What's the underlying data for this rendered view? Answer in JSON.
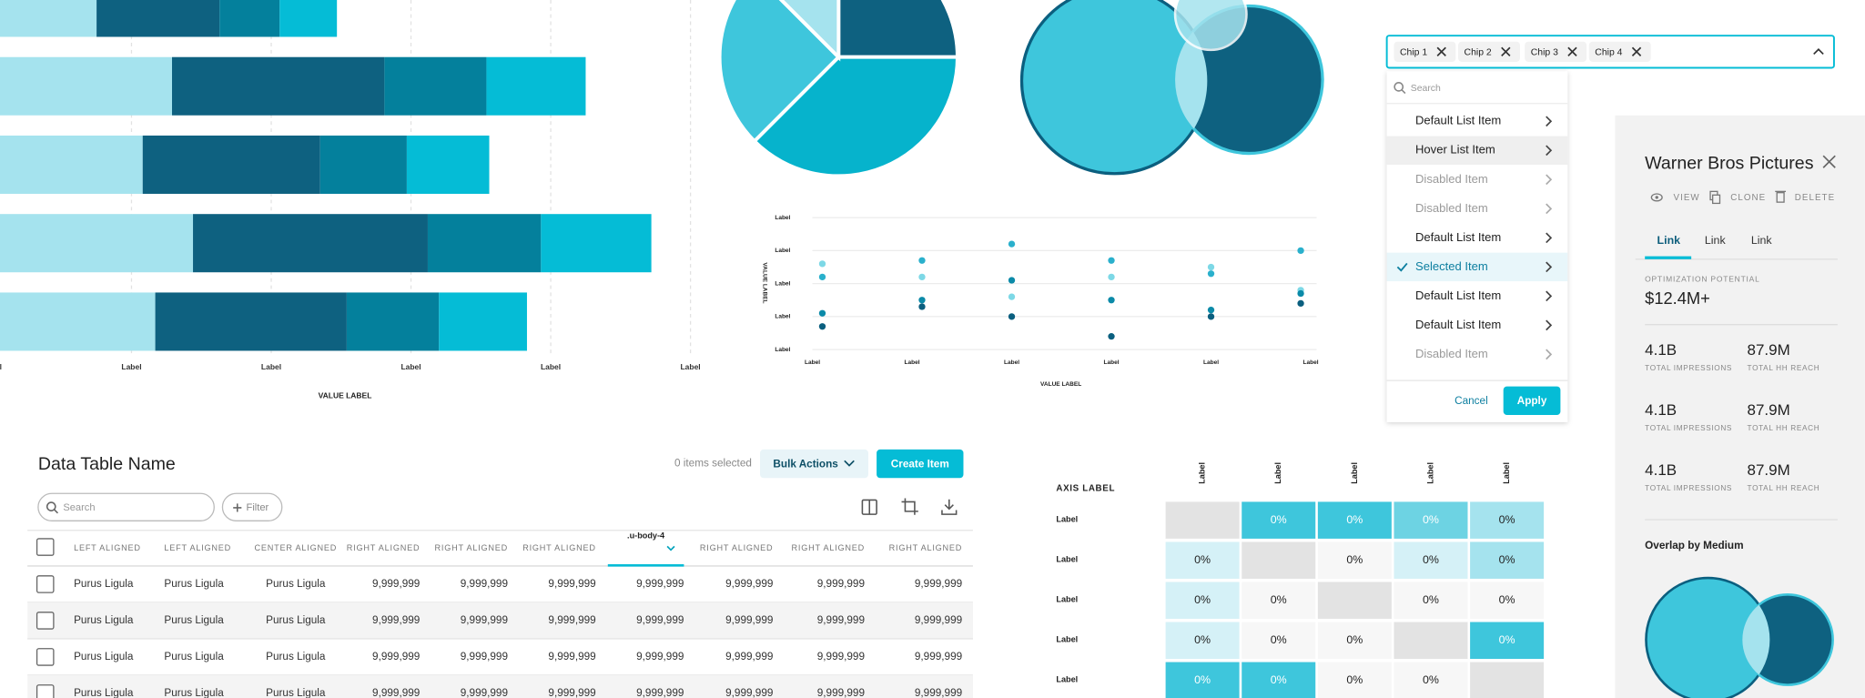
{
  "chart_data": [
    {
      "type": "bar",
      "orientation": "horizontal",
      "stacked": true,
      "x_label": "VALUE LABEL",
      "xlim": [
        0,
        5
      ],
      "xticks": [
        {
          "value": 0,
          "label": "Label"
        },
        {
          "value": 1,
          "label": "Label"
        },
        {
          "value": 2,
          "label": "Label"
        },
        {
          "value": 3,
          "label": "Label"
        },
        {
          "value": 4,
          "label": "Label"
        },
        {
          "value": 5,
          "label": "Label"
        }
      ],
      "grid": true,
      "series": [
        {
          "color": "#a5e3ee",
          "values": [
            0.75,
            1.29,
            1.08,
            1.44,
            1.17
          ]
        },
        {
          "color": "#0e6180",
          "values": [
            0.88,
            1.52,
            1.27,
            1.68,
            1.37
          ]
        },
        {
          "color": "#04809c",
          "values": [
            0.43,
            0.73,
            0.62,
            0.81,
            0.66
          ]
        },
        {
          "color": "#05bcd6",
          "values": [
            0.41,
            0.71,
            0.59,
            0.79,
            0.63
          ]
        }
      ]
    },
    {
      "type": "pie",
      "values": [
        25,
        37.5,
        25,
        12.5
      ],
      "colors": [
        "#0e6180",
        "#06b3cc",
        "#3ec6dc",
        "#a5e3ee"
      ]
    },
    {
      "type": "scatter",
      "x_label": "VALUE LABEL",
      "y_label": "VALUE LABEL",
      "xlim": [
        0,
        5
      ],
      "ylim": [
        0,
        4
      ],
      "xticks": [
        {
          "value": 0,
          "label": "Label"
        },
        {
          "value": 1,
          "label": "Label"
        },
        {
          "value": 2,
          "label": "Label"
        },
        {
          "value": 3,
          "label": "Label"
        },
        {
          "value": 4,
          "label": "Label"
        },
        {
          "value": 5,
          "label": "Label"
        }
      ],
      "yticks": [
        {
          "value": 0,
          "label": "Label"
        },
        {
          "value": 1,
          "label": "Label"
        },
        {
          "value": 2,
          "label": "Label"
        },
        {
          "value": 3,
          "label": "Label"
        },
        {
          "value": 4,
          "label": "Label"
        }
      ],
      "grid": true,
      "x": [
        0.1,
        1.1,
        2.0,
        3.0,
        4.0,
        4.9
      ],
      "series": [
        {
          "color": "#7dd8e6",
          "values": [
            2.6,
            2.2,
            1.6,
            2.2,
            2.5,
            1.8
          ]
        },
        {
          "color": "#2ab0cc",
          "values": [
            2.2,
            2.7,
            3.2,
            2.7,
            2.3,
            3.0
          ]
        },
        {
          "color": "#0b8aa8",
          "values": [
            1.1,
            1.5,
            2.1,
            1.5,
            1.2,
            1.7
          ]
        },
        {
          "color": "#0b5f7f",
          "values": [
            0.7,
            1.3,
            1.0,
            0.4,
            1.0,
            1.4
          ]
        }
      ]
    },
    {
      "type": "heatmap",
      "axis_label": "AXIS LABEL",
      "x_categories": [
        "Label",
        "Label",
        "Label",
        "Label",
        "Label"
      ],
      "y_categories": [
        "Label",
        "Label",
        "Label",
        "Label",
        "Label"
      ],
      "values": [
        [
          null,
          0,
          0,
          0,
          0
        ],
        [
          0,
          null,
          0,
          0,
          0
        ],
        [
          0,
          0,
          null,
          0,
          0
        ],
        [
          0,
          0,
          0,
          null,
          0
        ],
        [
          0,
          0,
          0,
          0,
          null
        ]
      ],
      "value_labels": [
        [
          null,
          "0%",
          "0%",
          "0%",
          "0%"
        ],
        [
          "0%",
          null,
          "0%",
          "0%",
          "0%"
        ],
        [
          "0%",
          "0%",
          null,
          "0%",
          "0%"
        ],
        [
          "0%",
          "0%",
          "0%",
          null,
          "0%"
        ],
        [
          "0%",
          "0%",
          "0%",
          "0%",
          null
        ]
      ],
      "colors": [
        [
          "#e3e3e3",
          "#3ec6dc",
          "#3ec6dc",
          "#6dd3e3",
          "#a5e3ee"
        ],
        [
          "#d5f1f7",
          "#e3e3e3",
          "#f7f7f7",
          "#d5f1f7",
          "#a5e3ee"
        ],
        [
          "#d5f1f7",
          "#f7f7f7",
          "#e3e3e3",
          "#f7f7f7",
          "#f7f7f7"
        ],
        [
          "#d5f1f7",
          "#f7f7f7",
          "#f7f7f7",
          "#e3e3e3",
          "#3ec6dc"
        ],
        [
          "#3ec6dc",
          "#3ec6dc",
          "#f7f7f7",
          "#f7f7f7",
          "#e3e3e3"
        ]
      ]
    }
  ],
  "chip_select": {
    "chips": [
      "Chip 1",
      "Chip 2",
      "Chip 3",
      "Chip 4"
    ]
  },
  "dropdown": {
    "search_placeholder": "Search",
    "items": [
      {
        "label": "Default List Item",
        "state": "default"
      },
      {
        "label": "Hover List Item",
        "state": "hover"
      },
      {
        "label": "Disabled Item",
        "state": "disabled"
      },
      {
        "label": "Disabled Item",
        "state": "disabled"
      },
      {
        "label": "Default List Item",
        "state": "default"
      },
      {
        "label": "Selected Item",
        "state": "selected"
      },
      {
        "label": "Default List Item",
        "state": "default"
      },
      {
        "label": "Default List Item",
        "state": "default"
      },
      {
        "label": "Disabled Item",
        "state": "disabled"
      }
    ],
    "cancel": "Cancel",
    "apply": "Apply"
  },
  "detail_panel": {
    "title": "Warner Bros Pictures",
    "actions": [
      "VIEW",
      "CLONE",
      "DELETE"
    ],
    "tabs": [
      "Link",
      "Link",
      "Link"
    ],
    "potential_label": "OPTIMIZATION POTENTIAL",
    "potential_value": "$12.4M+",
    "metrics": [
      [
        {
          "value": "4.1B",
          "label": "TOTAL IMPRESSIONS"
        },
        {
          "value": "87.9M",
          "label": "TOTAL HH REACH"
        }
      ],
      [
        {
          "value": "4.1B",
          "label": "TOTAL IMPRESSIONS"
        },
        {
          "value": "87.9M",
          "label": "TOTAL HH REACH"
        }
      ],
      [
        {
          "value": "4.1B",
          "label": "TOTAL IMPRESSIONS"
        },
        {
          "value": "87.9M",
          "label": "TOTAL HH REACH"
        }
      ]
    ],
    "overlap_title": "Overlap by Medium"
  },
  "data_table": {
    "title": "Data Table Name",
    "selection": "0 items selected",
    "bulk_actions": "Bulk Actions",
    "create": "Create Item",
    "search_placeholder": "Search",
    "filter": "Filter",
    "columns": [
      {
        "label": "LEFT ALIGNED",
        "align": "left"
      },
      {
        "label": "LEFT ALIGNED",
        "align": "left"
      },
      {
        "label": "CENTER ALIGNED",
        "align": "center"
      },
      {
        "label": "RIGHT ALIGNED",
        "align": "right"
      },
      {
        "label": "RIGHT ALIGNED",
        "align": "right"
      },
      {
        "label": "RIGHT ALIGNED",
        "align": "right"
      },
      {
        "label": ".u-body-4",
        "align": "right",
        "sorted": true
      },
      {
        "label": "RIGHT ALIGNED",
        "align": "right"
      },
      {
        "label": "RIGHT ALIGNED",
        "align": "right"
      },
      {
        "label": "RIGHT ALIGNED",
        "align": "right"
      }
    ],
    "rows": [
      [
        "Purus Ligula",
        "Purus Ligula",
        "Purus Ligula",
        "9,999,999",
        "9,999,999",
        "9,999,999",
        "9,999,999",
        "9,999,999",
        "9,999,999",
        "9,999,999"
      ],
      [
        "Purus Ligula",
        "Purus Ligula",
        "Purus Ligula",
        "9,999,999",
        "9,999,999",
        "9,999,999",
        "9,999,999",
        "9,999,999",
        "9,999,999",
        "9,999,999"
      ],
      [
        "Purus Ligula",
        "Purus Ligula",
        "Purus Ligula",
        "9,999,999",
        "9,999,999",
        "9,999,999",
        "9,999,999",
        "9,999,999",
        "9,999,999",
        "9,999,999"
      ],
      [
        "Purus Ligula",
        "Purus Ligula",
        "Purus Ligula",
        "9,999,999",
        "9,999,999",
        "9,999,999",
        "9,999,999",
        "9,999,999",
        "9,999,999",
        "9,999,999"
      ]
    ]
  }
}
